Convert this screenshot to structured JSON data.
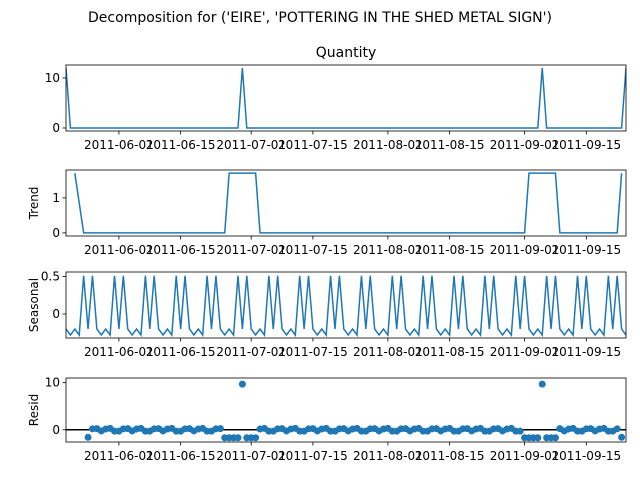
{
  "figure": {
    "suptitle": "Decomposition for ('EIRE', 'POTTERING IN THE SHED METAL SIGN')"
  },
  "chart_data": [
    {
      "type": "line",
      "title": "Quantity",
      "ylabel": "",
      "color": "#1f77b4",
      "xlim": [
        "2011-05-20",
        "2011-09-24"
      ],
      "ylim": [
        -0.6,
        12.6
      ],
      "yticks": [
        0,
        10
      ],
      "xticks": [
        "2011-06-01",
        "2011-06-15",
        "2011-07-01",
        "2011-07-15",
        "2011-08-01",
        "2011-08-15",
        "2011-09-01",
        "2011-09-15"
      ],
      "baseline": 0,
      "spikes": [
        {
          "date": "2011-05-20",
          "value": 12
        },
        {
          "date": "2011-06-29",
          "value": 12
        },
        {
          "date": "2011-09-05",
          "value": 12
        },
        {
          "date": "2011-09-24",
          "value": 12
        }
      ]
    },
    {
      "type": "line",
      "title": "",
      "ylabel": "Trend",
      "color": "#1f77b4",
      "xlim": [
        "2011-05-20",
        "2011-09-24"
      ],
      "ylim": [
        -0.09,
        1.8
      ],
      "yticks": [
        0,
        1
      ],
      "xticks": [
        "2011-06-01",
        "2011-06-15",
        "2011-07-01",
        "2011-07-15",
        "2011-08-01",
        "2011-08-15",
        "2011-09-01",
        "2011-09-15"
      ],
      "x": [
        "2011-05-22",
        "2011-05-24",
        "2011-06-25",
        "2011-06-26",
        "2011-07-02",
        "2011-07-03",
        "2011-09-01",
        "2011-09-02",
        "2011-09-08",
        "2011-09-09",
        "2011-09-22",
        "2011-09-23"
      ],
      "y": [
        1.71,
        0,
        0,
        1.71,
        1.71,
        0,
        0,
        1.71,
        1.71,
        0,
        0,
        1.71
      ]
    },
    {
      "type": "line",
      "title": "",
      "ylabel": "Seasonal",
      "color": "#1f77b4",
      "xlim": [
        "2011-05-20",
        "2011-09-24"
      ],
      "ylim": [
        -0.32,
        0.56
      ],
      "yticks": [
        0.0,
        0.5
      ],
      "xticks": [
        "2011-06-01",
        "2011-06-15",
        "2011-07-01",
        "2011-07-15",
        "2011-08-01",
        "2011-08-15",
        "2011-09-01",
        "2011-09-15"
      ],
      "start": "2011-05-20",
      "period_pattern": [
        -0.2,
        -0.28,
        -0.2,
        -0.28,
        0.51,
        -0.2,
        0.51
      ]
    },
    {
      "type": "scatter",
      "title": "",
      "ylabel": "Resid",
      "color": "#1f77b4",
      "xlim": [
        "2011-05-20",
        "2011-09-24"
      ],
      "ylim": [
        -2.6,
        11
      ],
      "yticks": [
        0,
        10
      ],
      "xticks": [
        "2011-06-01",
        "2011-06-15",
        "2011-07-01",
        "2011-07-15",
        "2011-08-01",
        "2011-08-15",
        "2011-09-01",
        "2011-09-15"
      ],
      "baseline": 0,
      "start": "2011-05-25",
      "end": "2011-09-23",
      "pattern": [
        -0.3,
        0.2,
        0.25,
        -0.25,
        0.15,
        0.3,
        -0.3
      ],
      "negative_runs": [
        {
          "from": "2011-06-25",
          "to": "2011-07-02",
          "value": -1.7
        },
        {
          "from": "2011-09-01",
          "to": "2011-09-08",
          "value": -1.7
        }
      ],
      "specials": [
        {
          "date": "2011-05-25",
          "value": -1.6
        },
        {
          "date": "2011-06-29",
          "value": 9.7
        },
        {
          "date": "2011-09-05",
          "value": 9.7
        },
        {
          "date": "2011-09-23",
          "value": -1.6
        }
      ]
    }
  ]
}
